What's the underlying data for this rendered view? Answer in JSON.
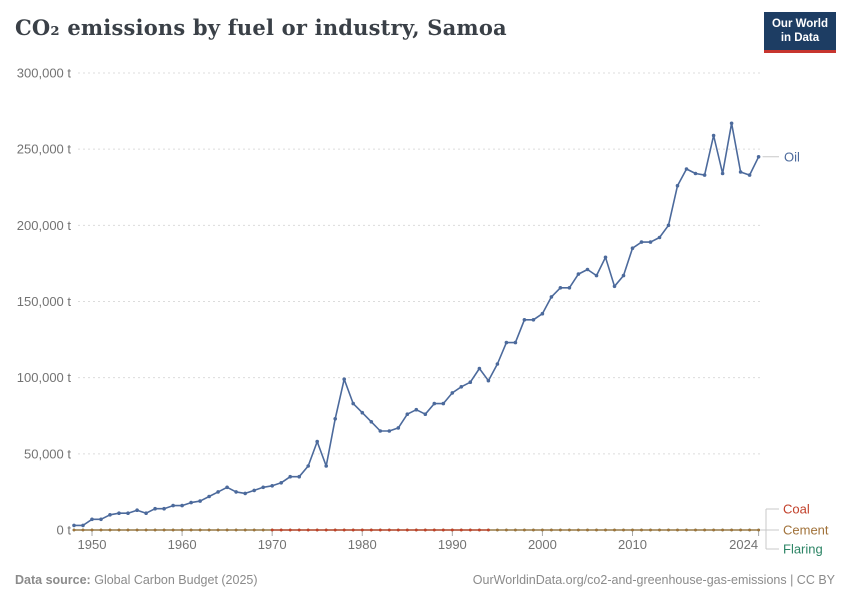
{
  "header": {
    "title": "CO₂ emissions by fuel or industry, Samoa"
  },
  "logo": {
    "line1": "Our World",
    "line2": "in Data",
    "bg_color": "#1d3d63",
    "accent_color": "#c7352f"
  },
  "chart_data": {
    "type": "line",
    "title": "CO₂ emissions by fuel or industry, Samoa",
    "entity": "Samoa",
    "unit": "t",
    "ylim": [
      0,
      300000
    ],
    "yticks": [
      0,
      50000,
      100000,
      150000,
      200000,
      250000,
      300000
    ],
    "ytick_suffix": " t",
    "xticks": [
      1950,
      1960,
      1970,
      1980,
      1990,
      2000,
      2010,
      2024
    ],
    "grid": "horizontal-dashed",
    "legend_position": "right-of-line-ends",
    "x": [
      1948,
      1949,
      1950,
      1951,
      1952,
      1953,
      1954,
      1955,
      1956,
      1957,
      1958,
      1959,
      1960,
      1961,
      1962,
      1963,
      1964,
      1965,
      1966,
      1967,
      1968,
      1969,
      1970,
      1971,
      1972,
      1973,
      1974,
      1975,
      1976,
      1977,
      1978,
      1979,
      1980,
      1981,
      1982,
      1983,
      1984,
      1985,
      1986,
      1987,
      1988,
      1989,
      1990,
      1991,
      1992,
      1993,
      1994,
      1995,
      1996,
      1997,
      1998,
      1999,
      2000,
      2001,
      2002,
      2003,
      2004,
      2005,
      2006,
      2007,
      2008,
      2009,
      2010,
      2011,
      2012,
      2013,
      2014,
      2015,
      2016,
      2017,
      2018,
      2019,
      2020,
      2021,
      2022,
      2023,
      2024
    ],
    "series": [
      {
        "name": "Oil",
        "color": "#4C6A9C",
        "values": [
          3000,
          3000,
          7000,
          7000,
          10000,
          11000,
          11000,
          13000,
          11000,
          14000,
          14000,
          16000,
          16000,
          18000,
          19000,
          22000,
          25000,
          28000,
          25000,
          24000,
          26000,
          28000,
          29000,
          31000,
          35000,
          35000,
          42000,
          58000,
          42000,
          73000,
          99000,
          83000,
          77000,
          71000,
          65000,
          65000,
          67000,
          76000,
          79000,
          76000,
          83000,
          83000,
          90000,
          94000,
          97000,
          106000,
          98000,
          109000,
          123000,
          123000,
          138000,
          138000,
          142000,
          153000,
          159000,
          159000,
          168000,
          171000,
          167000,
          179000,
          160000,
          167000,
          185000,
          189000,
          189000,
          192000,
          200000,
          226000,
          237000,
          234000,
          233000,
          259000,
          234000,
          267000,
          235000,
          233000,
          245000
        ]
      },
      {
        "name": "Coal",
        "color": "#C2402A",
        "values": [
          null,
          null,
          null,
          null,
          null,
          null,
          null,
          null,
          null,
          null,
          null,
          null,
          null,
          null,
          null,
          null,
          null,
          null,
          null,
          null,
          null,
          null,
          0,
          0,
          0,
          0,
          0,
          0,
          0,
          0,
          0,
          0,
          0,
          0,
          0,
          0,
          0,
          0,
          0,
          0,
          0,
          0,
          0,
          0,
          0,
          0,
          0,
          null,
          null,
          null,
          null,
          null,
          null,
          null,
          null,
          null,
          null,
          null,
          null,
          null,
          null,
          null,
          null,
          null,
          null,
          null,
          null,
          null,
          null,
          null,
          null,
          null,
          null,
          null,
          null,
          null,
          null
        ]
      },
      {
        "name": "Cement",
        "color": "#A1723A",
        "values": [
          0,
          0,
          0,
          0,
          0,
          0,
          0,
          0,
          0,
          0,
          0,
          0,
          0,
          0,
          0,
          0,
          0,
          0,
          0,
          0,
          0,
          0,
          0,
          0,
          0,
          0,
          0,
          0,
          0,
          0,
          0,
          0,
          0,
          0,
          0,
          0,
          0,
          0,
          0,
          0,
          0,
          0,
          0,
          0,
          0,
          0,
          0,
          0,
          0,
          0,
          0,
          0,
          0,
          0,
          0,
          0,
          0,
          0,
          0,
          0,
          0,
          0,
          0,
          0,
          0,
          0,
          0,
          0,
          0,
          0,
          0,
          0,
          0,
          0,
          0,
          0,
          0
        ]
      },
      {
        "name": "Flaring",
        "color": "#2C8465",
        "values": [
          0,
          0,
          0,
          0,
          0,
          0,
          0,
          0,
          0,
          0,
          0,
          0,
          0,
          0,
          0,
          0,
          0,
          0,
          0,
          0,
          0,
          0,
          0,
          0,
          0,
          0,
          0,
          0,
          0,
          0,
          0,
          0,
          0,
          0,
          0,
          0,
          0,
          0,
          0,
          0,
          0,
          0,
          0,
          0,
          0,
          0,
          0,
          0,
          0,
          0,
          0,
          0,
          0,
          0,
          0,
          0,
          0,
          0,
          0,
          0,
          0,
          0,
          0,
          0,
          0,
          0,
          0,
          0,
          0,
          0,
          0,
          0,
          0,
          0,
          0,
          0,
          0
        ]
      }
    ]
  },
  "footer": {
    "source_label": "Data source:",
    "source_value": "Global Carbon Budget (2025)",
    "credit": "OurWorldinData.org/co2-and-greenhouse-gas-emissions | CC BY"
  }
}
